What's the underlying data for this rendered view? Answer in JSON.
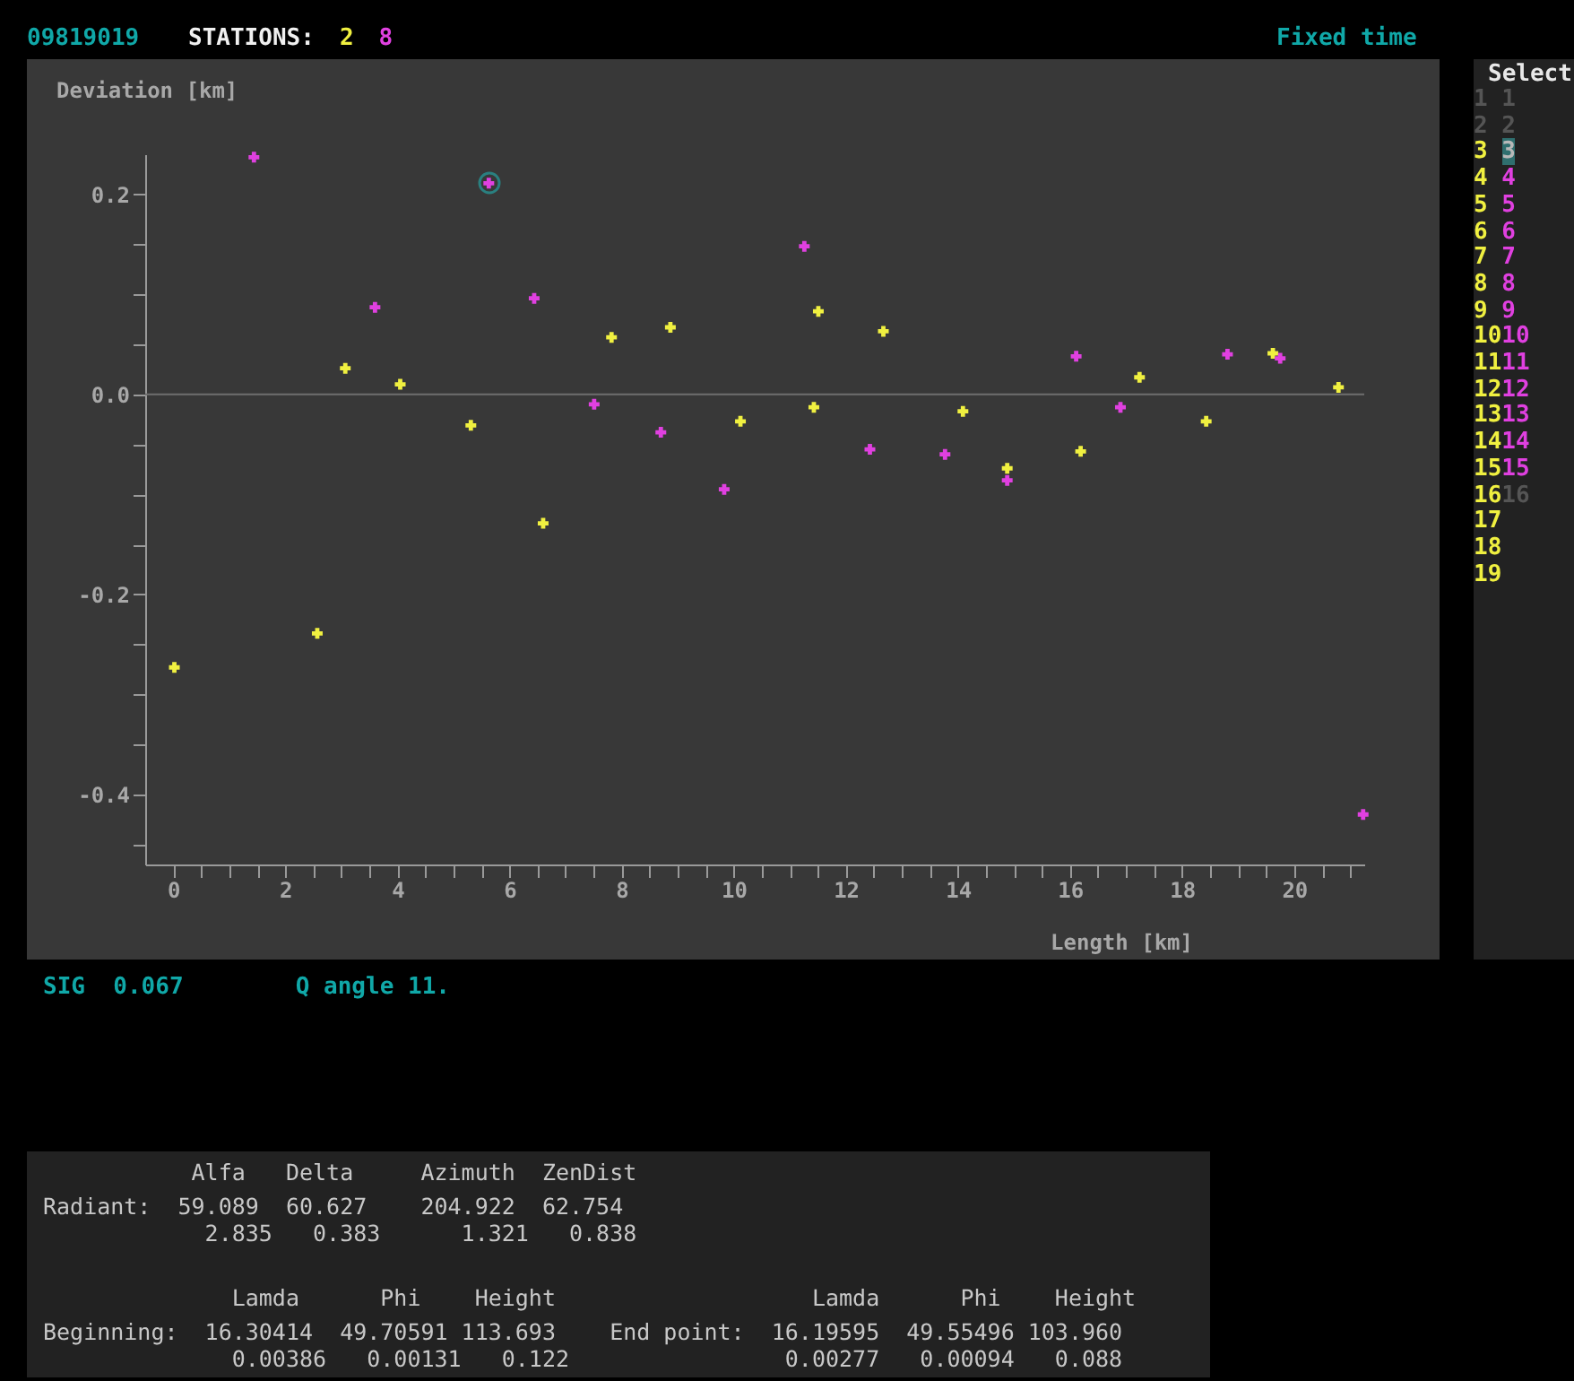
{
  "chart_data": {
    "type": "scatter",
    "title": "09819019",
    "legend_title": "STATIONS:",
    "legend": "top",
    "xlabel": "Length [km]",
    "ylabel": "Deviation [km]",
    "marker": "cross",
    "grid": false,
    "xlim": [
      -0.5,
      21.25
    ],
    "ylim": [
      -0.47,
      0.24
    ],
    "xticks": [
      0,
      {
        "value": 0.5,
        "label": null
      },
      {
        "value": 1,
        "label": null
      },
      {
        "value": 1.5,
        "label": null
      },
      2,
      {
        "value": 2.5,
        "label": null
      },
      {
        "value": 3,
        "label": null
      },
      {
        "value": 3.5,
        "label": null
      },
      4,
      {
        "value": 4.5,
        "label": null
      },
      {
        "value": 5,
        "label": null
      },
      {
        "value": 5.5,
        "label": null
      },
      6,
      {
        "value": 6.5,
        "label": null
      },
      {
        "value": 7,
        "label": null
      },
      {
        "value": 7.5,
        "label": null
      },
      8,
      {
        "value": 8.5,
        "label": null
      },
      {
        "value": 9,
        "label": null
      },
      {
        "value": 9.5,
        "label": null
      },
      10,
      {
        "value": 10.5,
        "label": null
      },
      {
        "value": 11,
        "label": null
      },
      {
        "value": 11.5,
        "label": null
      },
      12,
      {
        "value": 12.5,
        "label": null
      },
      {
        "value": 13,
        "label": null
      },
      {
        "value": 13.5,
        "label": null
      },
      14,
      {
        "value": 14.5,
        "label": null
      },
      {
        "value": 15,
        "label": null
      },
      {
        "value": 15.5,
        "label": null
      },
      16,
      {
        "value": 16.5,
        "label": null
      },
      {
        "value": 17,
        "label": null
      },
      {
        "value": 17.5,
        "label": null
      },
      18,
      {
        "value": 18.5,
        "label": null
      },
      {
        "value": 19,
        "label": null
      },
      {
        "value": 19.5,
        "label": null
      },
      20,
      {
        "value": 20.5,
        "label": null
      },
      {
        "value": 21,
        "label": null
      }
    ],
    "yticks": [
      {
        "value": -0.45,
        "label": null
      },
      -0.4,
      {
        "value": -0.35,
        "label": null
      },
      {
        "value": -0.3,
        "label": null
      },
      {
        "value": -0.25,
        "label": null
      },
      -0.2,
      {
        "value": -0.15,
        "label": null
      },
      {
        "value": -0.1,
        "label": null
      },
      {
        "value": -0.05,
        "label": null
      },
      {
        "value": 0,
        "label": "0.0"
      },
      {
        "value": 0.05,
        "label": null
      },
      {
        "value": 0.1,
        "label": null
      },
      {
        "value": 0.15,
        "label": null
      },
      0.2
    ],
    "ref_lines": [
      {
        "axis": "y",
        "value": 0,
        "color": "#6e6e6e"
      }
    ],
    "series": [
      {
        "name": "2",
        "color": "#f0f040",
        "x": [
          0.02,
          2.57,
          3.07,
          4.05,
          5.31,
          6.6,
          7.82,
          8.87,
          10.12,
          11.43,
          11.51,
          12.67,
          14.09,
          14.88,
          16.19,
          17.24,
          18.43,
          19.62,
          20.79
        ],
        "values": [
          -0.273,
          -0.239,
          0.026,
          0.01,
          -0.031,
          -0.129,
          0.057,
          0.067,
          -0.027,
          -0.013,
          0.083,
          0.063,
          -0.017,
          -0.074,
          -0.057,
          0.017,
          -0.027,
          0.041,
          0.007
        ]
      },
      {
        "name": "8",
        "color": "#e040e0",
        "x": [
          1.44,
          5.63,
          3.6,
          6.44,
          7.51,
          8.7,
          9.83,
          11.26,
          12.43,
          13.77,
          14.88,
          16.11,
          16.9,
          18.81,
          19.75,
          21.23
        ],
        "values": [
          0.237,
          0.211,
          0.087,
          0.096,
          -0.01,
          -0.038,
          -0.095,
          0.148,
          -0.055,
          -0.06,
          -0.086,
          0.038,
          -0.013,
          0.04,
          0.036,
          -0.42
        ]
      }
    ],
    "annotations": [
      "Fixed time",
      "SIG  0.067        Q angle 11.",
      "Select",
      "1 1",
      "2 2",
      "3 3",
      "4 4",
      "5 5",
      "6 6",
      "7 7",
      "8 8",
      "9 9",
      "1010",
      "1111",
      "1212",
      "1313",
      "1414",
      "1515",
      "1616",
      "17",
      "18",
      "19",
      "           Alfa   Delta     Azimuth  ZenDist",
      "Radiant:  59.089  60.627    204.922  62.754",
      "            2.835   0.383      1.321   0.838",
      "              Lamda      Phi    Height                   Lamda      Phi    Height",
      "Beginning:  16.30414  49.70591 113.693    End point:  16.19595  49.55496 103.960",
      "              0.00386   0.00131   0.122                0.00277   0.00094   0.088"
    ]
  }
}
